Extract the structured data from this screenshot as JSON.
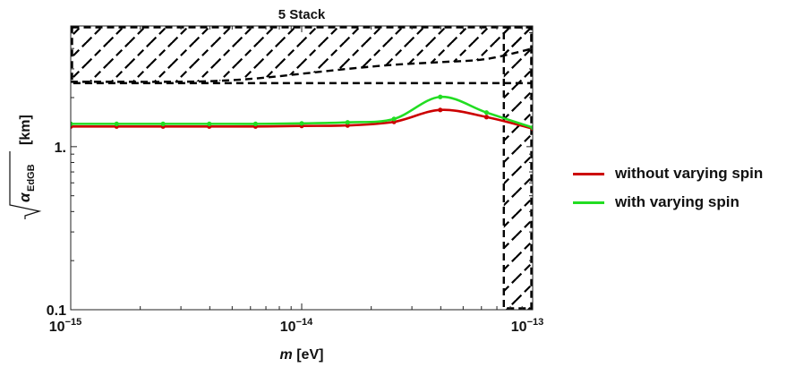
{
  "chart_data": {
    "type": "line",
    "title": "5 Stack",
    "xlabel_symbol": "m",
    "xlabel_unit": "[eV]",
    "ylabel_symbol": "α",
    "ylabel_subscript": "EdGB",
    "ylabel_unit": "[km]",
    "xscale": "log",
    "yscale": "log",
    "xlim": [
      1e-15,
      1e-13
    ],
    "ylim": [
      0.1,
      5.5
    ],
    "x_ticks": [
      {
        "value": 1e-15,
        "base": "10",
        "exp": "−15"
      },
      {
        "value": 1e-14,
        "base": "10",
        "exp": "−14"
      },
      {
        "value": 1e-13,
        "base": "10",
        "exp": "−13"
      }
    ],
    "y_ticks": [
      {
        "value": 0.1,
        "label": "0.1"
      },
      {
        "value": 1,
        "label": "1."
      }
    ],
    "grid": false,
    "legend_position": "right",
    "series": [
      {
        "name": "without varying spin",
        "color": "#cc0000",
        "x": [
          1e-15,
          1.58e-15,
          2.51e-15,
          3.98e-15,
          6.31e-15,
          1e-14,
          1.58e-14,
          2.51e-14,
          3.98e-14,
          6.31e-14,
          1e-13
        ],
        "y": [
          1.33,
          1.33,
          1.33,
          1.33,
          1.33,
          1.34,
          1.35,
          1.42,
          1.68,
          1.52,
          1.29
        ]
      },
      {
        "name": "with varying spin",
        "color": "#22dd22",
        "x": [
          1e-15,
          1.58e-15,
          2.51e-15,
          3.98e-15,
          6.31e-15,
          1e-14,
          1.58e-14,
          2.51e-14,
          3.98e-14,
          6.31e-14,
          1e-13
        ],
        "y": [
          1.38,
          1.38,
          1.38,
          1.38,
          1.38,
          1.39,
          1.41,
          1.48,
          2.02,
          1.62,
          1.31
        ]
      }
    ],
    "excluded_regions": [
      {
        "kind": "upper",
        "x": [
          1e-15,
          1.58e-15,
          2.51e-15,
          3.98e-15,
          6.31e-15,
          1e-14,
          1.58e-14,
          2.51e-14,
          3.98e-14,
          6.31e-14,
          1e-13
        ],
        "y": [
          2.5,
          2.5,
          2.5,
          2.52,
          2.62,
          2.8,
          3.0,
          3.18,
          3.3,
          3.45,
          4.0
        ]
      },
      {
        "kind": "right",
        "x_min": 7.5e-14
      }
    ]
  }
}
